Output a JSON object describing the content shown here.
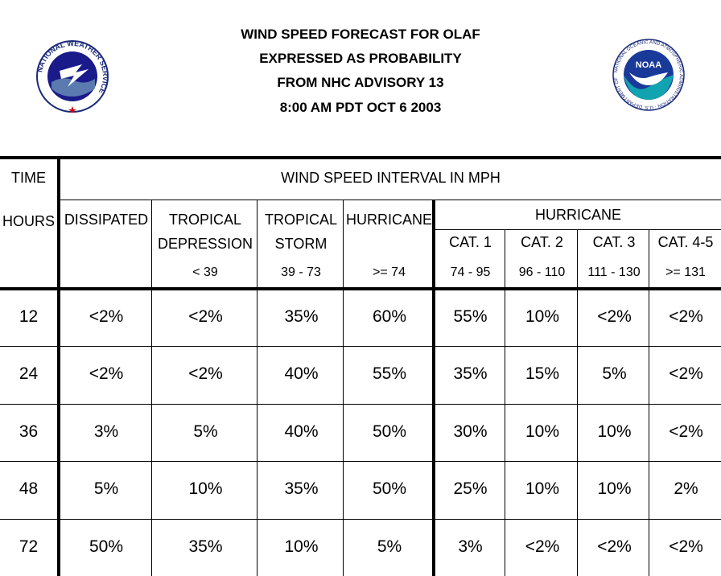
{
  "header": {
    "title_line1": "WIND SPEED FORECAST FOR OLAF",
    "title_line2": "EXPRESSED AS PROBABILITY",
    "title_line3": "FROM NHC ADVISORY   13",
    "title_line4": "8:00 AM PDT OCT 6 2003"
  },
  "logos": {
    "nws_ring_text": "NATIONAL WEATHER SERVICE",
    "noaa_text": "NOAA",
    "noaa_ring_text": "NATIONAL OCEANIC AND ATMOSPHERIC ADMINISTRATION · U.S. DEPARTMENT OF COMMERCE"
  },
  "table": {
    "time_header": "TIME",
    "hours_header": "HOURS",
    "interval_header": "WIND SPEED INTERVAL IN MPH",
    "hurricane_group_header": "HURRICANE",
    "columns": [
      {
        "line1": "DISSIPATED",
        "line2": "",
        "range": ""
      },
      {
        "line1": "TROPICAL",
        "line2": "DEPRESSION",
        "range": "< 39"
      },
      {
        "line1": "TROPICAL",
        "line2": "STORM",
        "range": "39 - 73"
      },
      {
        "line1": "HURRICANE",
        "line2": "",
        "range": ">= 74"
      },
      {
        "line1": "CAT. 1",
        "line2": "",
        "range": "74 - 95"
      },
      {
        "line1": "CAT. 2",
        "line2": "",
        "range": "96 - 110"
      },
      {
        "line1": "CAT. 3",
        "line2": "",
        "range": "111 - 130"
      },
      {
        "line1": "CAT. 4-5",
        "line2": "",
        "range": ">= 131"
      }
    ],
    "rows": [
      {
        "hour": "12",
        "values": [
          "<2%",
          "<2%",
          "35%",
          "60%",
          "55%",
          "10%",
          "<2%",
          "<2%"
        ]
      },
      {
        "hour": "24",
        "values": [
          "<2%",
          "<2%",
          "40%",
          "55%",
          "35%",
          "15%",
          "5%",
          "<2%"
        ]
      },
      {
        "hour": "36",
        "values": [
          "3%",
          "5%",
          "40%",
          "50%",
          "30%",
          "10%",
          "10%",
          "<2%"
        ]
      },
      {
        "hour": "48",
        "values": [
          "5%",
          "10%",
          "35%",
          "50%",
          "25%",
          "10%",
          "10%",
          "2%"
        ]
      },
      {
        "hour": "72",
        "values": [
          "50%",
          "35%",
          "10%",
          "5%",
          "3%",
          "<2%",
          "<2%",
          "<2%"
        ]
      }
    ]
  }
}
